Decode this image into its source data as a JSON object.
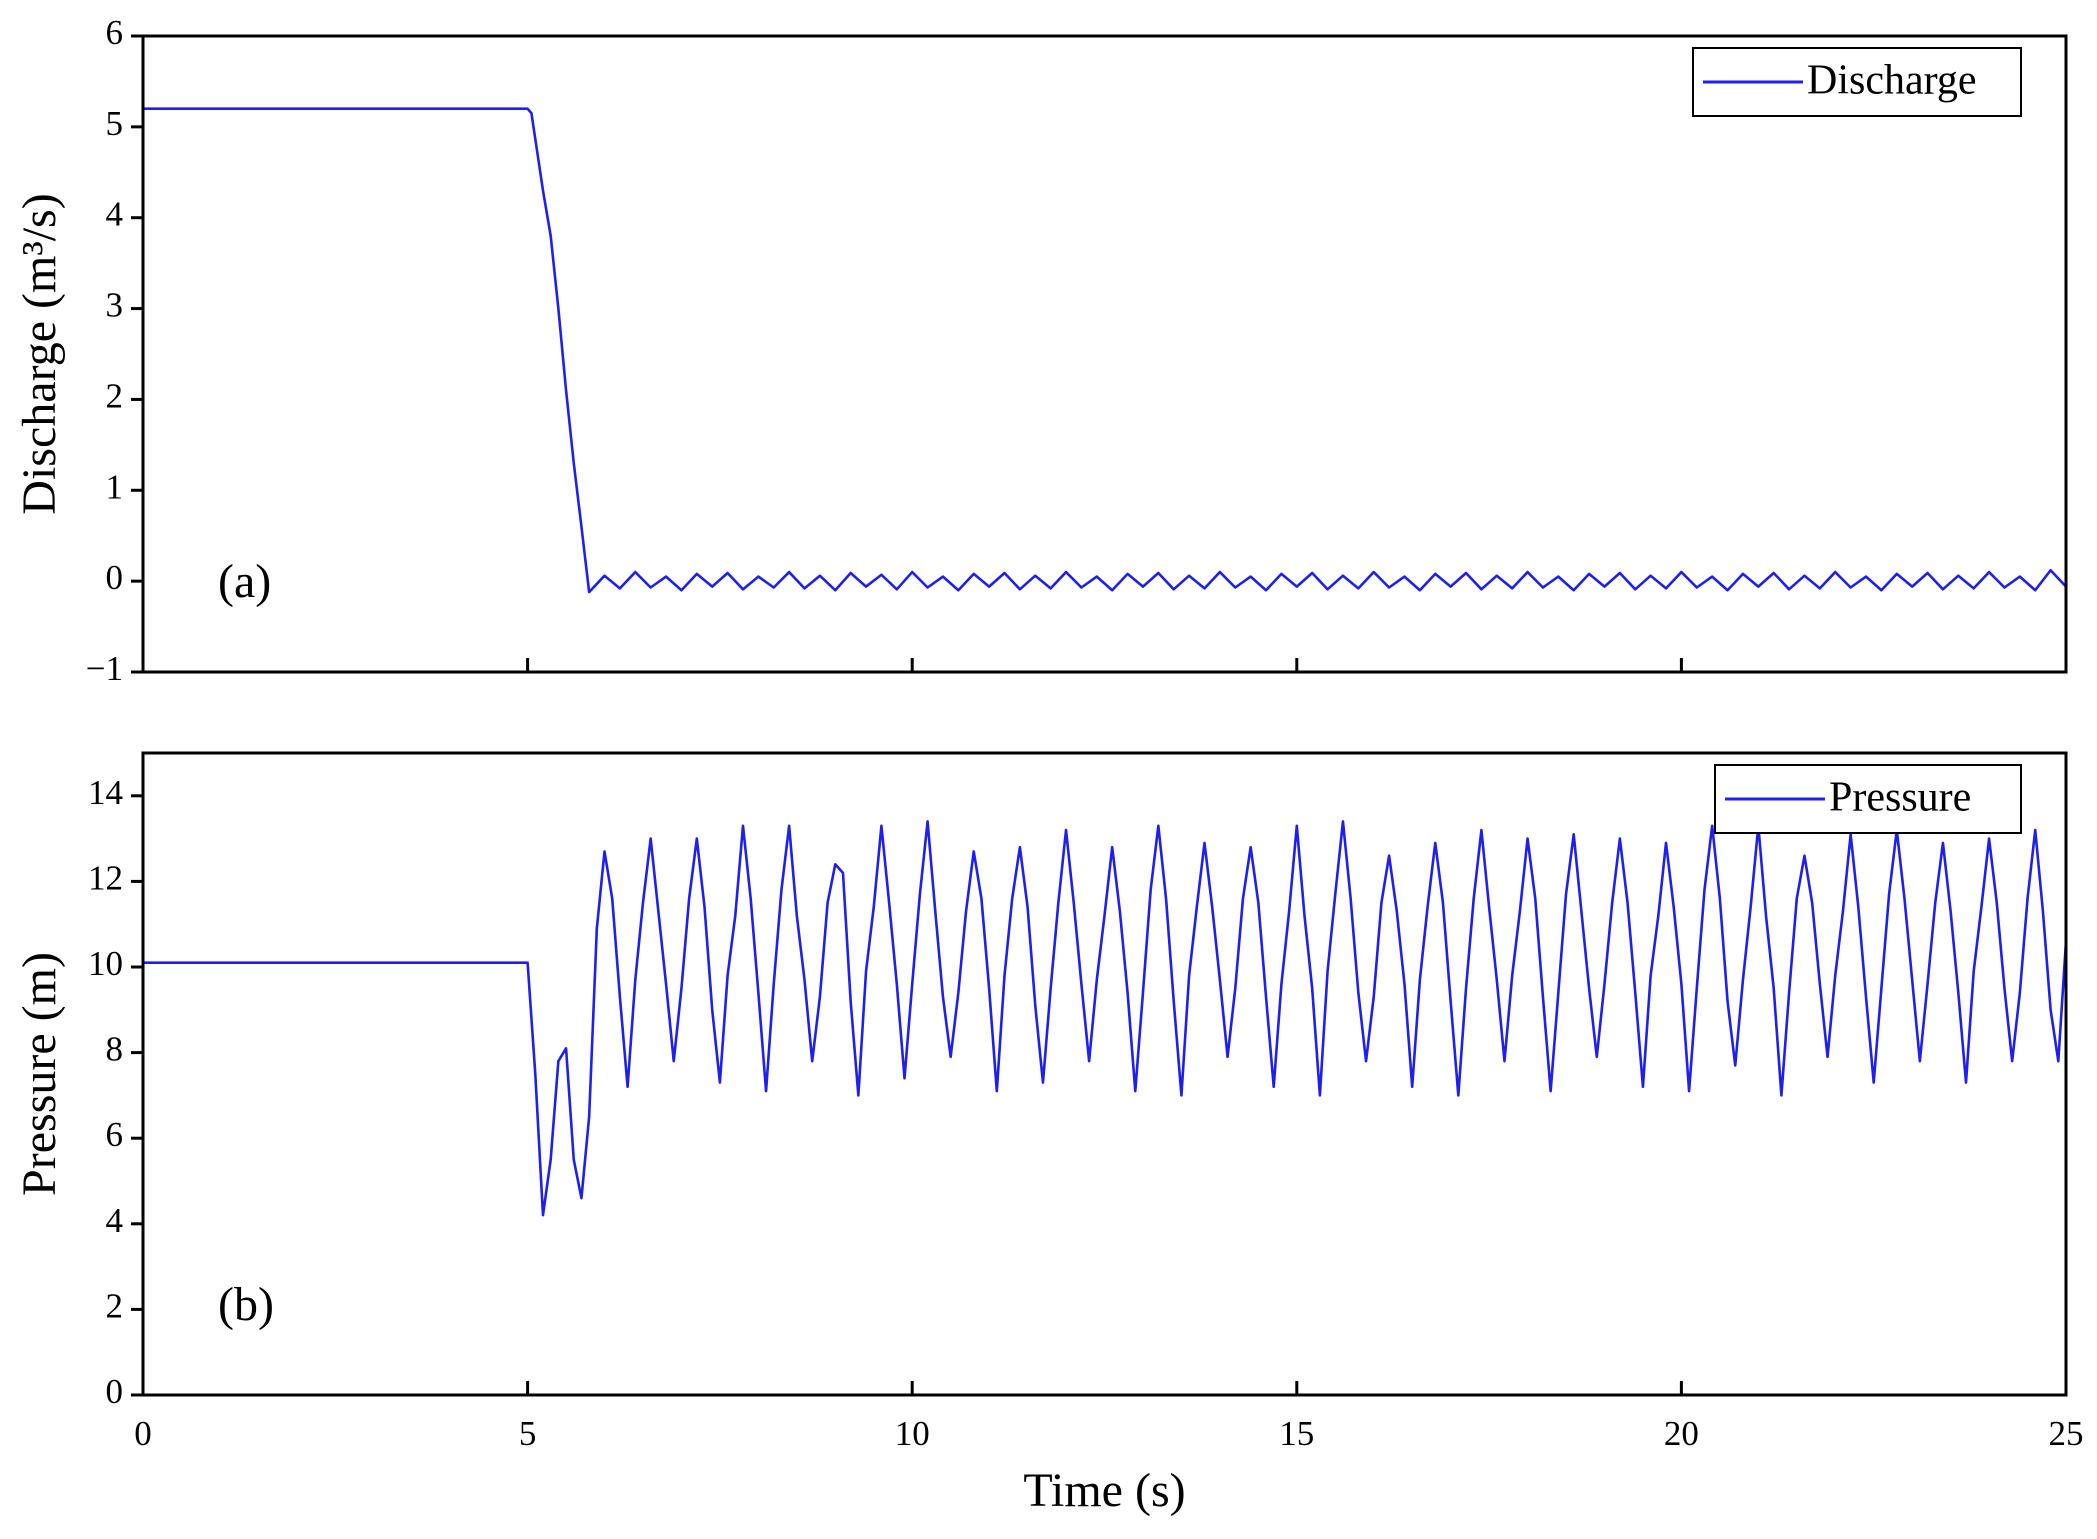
{
  "chart_data": [
    {
      "type": "line",
      "ylabel": "Discharge (m³/s)",
      "annotation": "(a)",
      "x": [
        0,
        5,
        5.05,
        5.2,
        5.3,
        5.4,
        5.5,
        5.6,
        5.7,
        5.8,
        6,
        6.2,
        6.4,
        6.6,
        6.8,
        7,
        7.2,
        7.4,
        7.6,
        7.8,
        8,
        8.2,
        8.4,
        8.6,
        8.8,
        9,
        9.2,
        9.4,
        9.6,
        9.8,
        10,
        10.2,
        10.4,
        10.6,
        10.8,
        11,
        11.2,
        11.4,
        11.6,
        11.8,
        12,
        12.2,
        12.4,
        12.6,
        12.8,
        13,
        13.2,
        13.4,
        13.6,
        13.8,
        14,
        14.2,
        14.4,
        14.6,
        14.8,
        15,
        15.2,
        15.4,
        15.6,
        15.8,
        16,
        16.2,
        16.4,
        16.6,
        16.8,
        17,
        17.2,
        17.4,
        17.6,
        17.8,
        18,
        18.2,
        18.4,
        18.6,
        18.8,
        19,
        19.2,
        19.4,
        19.6,
        19.8,
        20,
        20.2,
        20.4,
        20.6,
        20.8,
        21,
        21.2,
        21.4,
        21.6,
        21.8,
        22,
        22.2,
        22.4,
        22.6,
        22.8,
        23,
        23.2,
        23.4,
        23.6,
        23.8,
        24,
        24.2,
        24.4,
        24.6,
        24.8,
        25
      ],
      "series": [
        {
          "name": "Discharge",
          "color": "#1f1ff0",
          "values": [
            5.2,
            5.2,
            5.15,
            4.3,
            3.8,
            3.0,
            2.1,
            1.3,
            0.6,
            -0.12,
            0.06,
            -0.08,
            0.1,
            -0.07,
            0.05,
            -0.1,
            0.08,
            -0.06,
            0.09,
            -0.09,
            0.05,
            -0.07,
            0.1,
            -0.08,
            0.06,
            -0.1,
            0.09,
            -0.06,
            0.07,
            -0.09,
            0.1,
            -0.07,
            0.05,
            -0.1,
            0.08,
            -0.06,
            0.09,
            -0.09,
            0.06,
            -0.08,
            0.1,
            -0.07,
            0.05,
            -0.1,
            0.08,
            -0.06,
            0.09,
            -0.09,
            0.06,
            -0.08,
            0.1,
            -0.07,
            0.05,
            -0.1,
            0.08,
            -0.06,
            0.09,
            -0.09,
            0.06,
            -0.08,
            0.1,
            -0.07,
            0.05,
            -0.1,
            0.08,
            -0.06,
            0.09,
            -0.09,
            0.06,
            -0.08,
            0.1,
            -0.07,
            0.05,
            -0.1,
            0.08,
            -0.06,
            0.09,
            -0.09,
            0.06,
            -0.08,
            0.1,
            -0.07,
            0.05,
            -0.1,
            0.08,
            -0.06,
            0.09,
            -0.09,
            0.06,
            -0.08,
            0.1,
            -0.07,
            0.05,
            -0.1,
            0.08,
            -0.06,
            0.09,
            -0.09,
            0.06,
            -0.08,
            0.1,
            -0.07,
            0.05,
            -0.1,
            0.12,
            -0.06
          ]
        }
      ],
      "xlim": [
        0,
        25
      ],
      "xticks": [
        0,
        5,
        10,
        15,
        20,
        25
      ],
      "ylim": [
        -1,
        6
      ],
      "yticks": [
        {
          "value": -1,
          "label": "−1"
        },
        0,
        1,
        2,
        3,
        4,
        5,
        6
      ],
      "legend": "upper right"
    },
    {
      "type": "line",
      "xlabel": "Time (s)",
      "ylabel": "Pressure (m)",
      "annotation": "(b)",
      "x": [
        0,
        5,
        5.1,
        5.2,
        5.3,
        5.4,
        5.5,
        5.6,
        5.7,
        5.8,
        5.9,
        6,
        6.1,
        6.2,
        6.3,
        6.4,
        6.5,
        6.6,
        6.7,
        6.8,
        6.9,
        7,
        7.1,
        7.2,
        7.3,
        7.4,
        7.5,
        7.6,
        7.7,
        7.8,
        7.9,
        8,
        8.1,
        8.2,
        8.3,
        8.4,
        8.5,
        8.6,
        8.7,
        8.8,
        8.9,
        9,
        9.1,
        9.2,
        9.3,
        9.4,
        9.5,
        9.6,
        9.7,
        9.8,
        9.9,
        10,
        10.1,
        10.2,
        10.3,
        10.4,
        10.5,
        10.6,
        10.7,
        10.8,
        10.9,
        11,
        11.1,
        11.2,
        11.3,
        11.4,
        11.5,
        11.6,
        11.7,
        11.8,
        11.9,
        12,
        12.1,
        12.2,
        12.3,
        12.4,
        12.5,
        12.6,
        12.7,
        12.8,
        12.9,
        13,
        13.1,
        13.2,
        13.3,
        13.4,
        13.5,
        13.6,
        13.7,
        13.8,
        13.9,
        14,
        14.1,
        14.2,
        14.3,
        14.4,
        14.5,
        14.6,
        14.7,
        14.8,
        14.9,
        15,
        15.1,
        15.2,
        15.3,
        15.4,
        15.5,
        15.6,
        15.7,
        15.8,
        15.9,
        16,
        16.1,
        16.2,
        16.3,
        16.4,
        16.5,
        16.6,
        16.7,
        16.8,
        16.9,
        17,
        17.1,
        17.2,
        17.3,
        17.4,
        17.5,
        17.6,
        17.7,
        17.8,
        17.9,
        18,
        18.1,
        18.2,
        18.3,
        18.4,
        18.5,
        18.6,
        18.7,
        18.8,
        18.9,
        19,
        19.1,
        19.2,
        19.3,
        19.4,
        19.5,
        19.6,
        19.7,
        19.8,
        19.9,
        20,
        20.1,
        20.2,
        20.3,
        20.4,
        20.5,
        20.6,
        20.7,
        20.8,
        20.9,
        21,
        21.1,
        21.2,
        21.3,
        21.4,
        21.5,
        21.6,
        21.7,
        21.8,
        21.9,
        22,
        22.1,
        22.2,
        22.3,
        22.4,
        22.5,
        22.6,
        22.7,
        22.8,
        22.9,
        23,
        23.1,
        23.2,
        23.3,
        23.4,
        23.5,
        23.6,
        23.7,
        23.8,
        23.9,
        24,
        24.1,
        24.2,
        24.3,
        24.4,
        24.5,
        24.6,
        24.7,
        24.8,
        24.9,
        25
      ],
      "series": [
        {
          "name": "Pressure",
          "color": "#1f1ff0",
          "values": [
            10.1,
            10.1,
            7.5,
            4.2,
            5.5,
            7.8,
            8.1,
            5.5,
            4.6,
            6.5,
            10.9,
            12.7,
            11.6,
            9.3,
            7.2,
            9.7,
            11.5,
            13.0,
            11.3,
            9.6,
            7.8,
            9.5,
            11.6,
            13.0,
            11.4,
            9.0,
            7.3,
            9.8,
            11.2,
            13.3,
            11.6,
            9.4,
            7.1,
            9.6,
            11.8,
            13.3,
            11.2,
            9.7,
            7.8,
            9.3,
            11.5,
            12.4,
            12.2,
            9.2,
            7.0,
            9.9,
            11.4,
            13.3,
            11.5,
            9.6,
            7.4,
            9.6,
            11.7,
            13.4,
            11.3,
            9.3,
            7.9,
            9.4,
            11.3,
            12.7,
            11.6,
            9.5,
            7.1,
            9.8,
            11.6,
            12.8,
            11.4,
            9.1,
            7.3,
            9.5,
            11.5,
            13.2,
            11.5,
            9.6,
            7.8,
            9.7,
            11.2,
            12.8,
            11.3,
            9.4,
            7.1,
            9.4,
            11.8,
            13.3,
            11.6,
            9.2,
            7.0,
            9.8,
            11.4,
            12.9,
            11.4,
            9.7,
            7.9,
            9.5,
            11.6,
            12.8,
            11.5,
            9.3,
            7.2,
            9.6,
            11.3,
            13.3,
            11.2,
            9.5,
            7.0,
            9.9,
            11.7,
            13.4,
            11.6,
            9.4,
            7.8,
            9.3,
            11.5,
            12.6,
            11.3,
            9.6,
            7.2,
            9.7,
            11.4,
            12.9,
            11.5,
            9.2,
            7.0,
            9.5,
            11.6,
            13.2,
            11.4,
            9.7,
            7.8,
            9.8,
            11.3,
            13.0,
            11.6,
            9.3,
            7.1,
            9.4,
            11.7,
            13.1,
            11.3,
            9.5,
            7.9,
            9.6,
            11.5,
            13.0,
            11.5,
            9.4,
            7.2,
            9.8,
            11.2,
            12.9,
            11.4,
            9.6,
            7.1,
            9.5,
            11.8,
            13.3,
            11.6,
            9.2,
            7.7,
            9.7,
            11.4,
            13.3,
            11.2,
            9.5,
            7.0,
            9.4,
            11.6,
            12.6,
            11.5,
            9.6,
            7.9,
            9.8,
            11.3,
            13.1,
            11.4,
            9.3,
            7.3,
            9.5,
            11.7,
            13.2,
            11.6,
            9.7,
            7.8,
            9.6,
            11.5,
            12.9,
            11.3,
            9.4,
            7.3,
            9.9,
            11.4,
            13.0,
            11.5,
            9.5,
            7.8,
            9.4,
            11.6,
            13.2,
            11.3,
            9.0,
            7.8,
            10.6
          ]
        }
      ],
      "xlim": [
        0,
        25
      ],
      "xticks": [
        0,
        5,
        10,
        15,
        20,
        25
      ],
      "ylim": [
        0,
        15
      ],
      "yticks": [
        0,
        2,
        4,
        6,
        8,
        10,
        12,
        14
      ],
      "legend": "upper right"
    }
  ]
}
